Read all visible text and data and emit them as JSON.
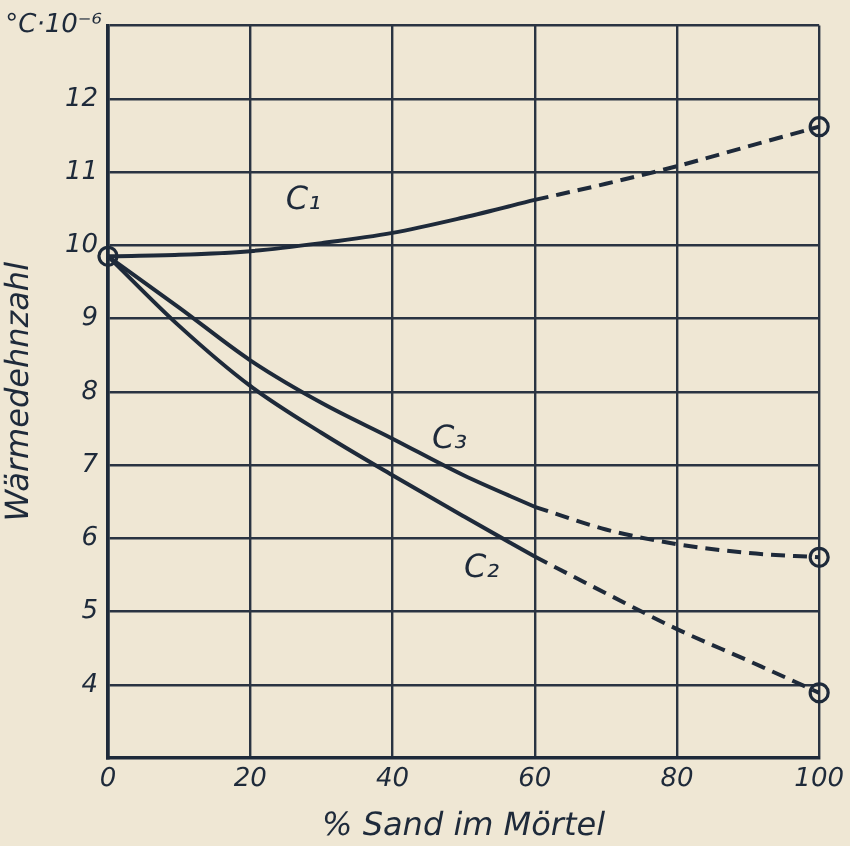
{
  "chart_data": {
    "type": "line",
    "xlabel": "% Sand im Mörtel",
    "ylabel": "Wärmedehnzahl",
    "annotations": [
      "°C·10⁻⁶"
    ],
    "xlim": [
      0,
      100
    ],
    "ylim": [
      3,
      13
    ],
    "xticks": [
      0,
      20,
      40,
      60,
      80,
      100
    ],
    "yticks": [
      4,
      5,
      6,
      7,
      8,
      9,
      10,
      11,
      12,
      {
        "value": 13,
        "label": null
      }
    ],
    "grid": true,
    "legend": false,
    "marker": "none",
    "series": [
      {
        "name": "C₁",
        "color": "#1e2a3a",
        "line_style": "solid",
        "x": [
          0,
          10,
          20,
          30,
          40,
          50,
          60
        ],
        "values": [
          9.85,
          9.87,
          9.92,
          10.03,
          10.17,
          10.38,
          10.62
        ]
      },
      {
        "color": "#1e2a3a",
        "line_style": "dashed",
        "x": [
          60,
          70,
          80,
          90,
          100
        ],
        "values": [
          10.62,
          10.84,
          11.08,
          11.35,
          11.62
        ]
      },
      {
        "name": "C₂",
        "color": "#1e2a3a",
        "line_style": "solid",
        "x": [
          0,
          10,
          20,
          30,
          40,
          50,
          60
        ],
        "values": [
          9.85,
          8.9,
          8.08,
          7.44,
          6.86,
          6.3,
          5.75
        ]
      },
      {
        "color": "#1e2a3a",
        "line_style": "dashed",
        "x": [
          60,
          70,
          80,
          90,
          100
        ],
        "values": [
          5.75,
          5.25,
          4.76,
          4.33,
          3.89
        ]
      },
      {
        "name": "C₃",
        "color": "#1e2a3a",
        "line_style": "solid",
        "x": [
          0,
          10,
          20,
          30,
          40,
          50,
          60
        ],
        "values": [
          9.85,
          9.15,
          8.43,
          7.85,
          7.36,
          6.86,
          6.43
        ]
      },
      {
        "color": "#1e2a3a",
        "line_style": "dashed",
        "x": [
          60,
          70,
          80,
          90,
          100
        ],
        "values": [
          6.43,
          6.12,
          5.92,
          5.8,
          5.74
        ]
      },
      {
        "type": "scatter",
        "color": "#1e2a3a",
        "marker": "circle",
        "x": [
          0,
          100,
          100,
          100
        ],
        "values": [
          9.85,
          11.62,
          5.74,
          3.89
        ]
      }
    ]
  }
}
